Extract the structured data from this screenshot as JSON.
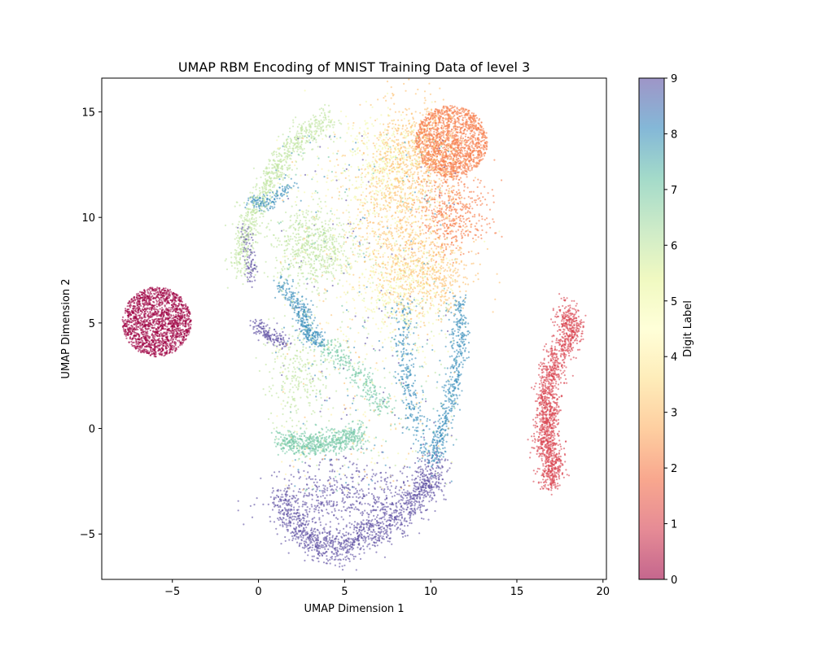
{
  "chart_data": {
    "type": "scatter",
    "title": "UMAP RBM Encoding of MNIST Training Data of level 3",
    "xlabel": "UMAP Dimension 1",
    "ylabel": "UMAP Dimension 2",
    "xlim": [
      -9.1,
      20.2
    ],
    "ylim": [
      -7.15,
      16.6
    ],
    "x_ticks": [
      -5,
      0,
      5,
      10,
      15,
      20
    ],
    "y_ticks": [
      -5,
      0,
      5,
      10,
      15
    ],
    "x_tick_labels": [
      "−5",
      "0",
      "5",
      "10",
      "15",
      "20"
    ],
    "y_tick_labels": [
      "−5",
      "0",
      "5",
      "10",
      "15"
    ],
    "grid": false,
    "colormap": "Spectral",
    "alpha": 0.6,
    "colorbar": {
      "label": "Digit Label",
      "range": [
        0,
        9
      ],
      "ticks": [
        "0",
        "1",
        "2",
        "3",
        "4",
        "5",
        "6",
        "7",
        "8",
        "9"
      ],
      "stops": [
        "#9e0142",
        "#d53e4f",
        "#f46d43",
        "#fdae61",
        "#fee08b",
        "#ffffbf",
        "#e6f598",
        "#abdda4",
        "#66c2a5",
        "#3288bd",
        "#5e4fa2"
      ]
    },
    "clusters": [
      {
        "label": 0,
        "x": [
          -7.7,
          -3.9
        ],
        "y": [
          3.3,
          6.8
        ],
        "shape": "blob",
        "note": "dense isolated cluster"
      },
      {
        "label": 1,
        "x": [
          15.9,
          18.7
        ],
        "y": [
          -2.8,
          5.8
        ],
        "shape": "elongated",
        "note": "dense isolated cluster"
      },
      {
        "label": 2,
        "x": [
          8.5,
          13.5
        ],
        "y": [
          8.0,
          15.5
        ],
        "shape": "blob"
      },
      {
        "label": 3,
        "x": [
          5.5,
          12.0
        ],
        "y": [
          5.0,
          15.3
        ],
        "shape": "diffuse"
      },
      {
        "label": 5,
        "x": [
          4.0,
          11.5
        ],
        "y": [
          3.0,
          14.8
        ],
        "shape": "diffuse"
      },
      {
        "label": 6,
        "x": [
          -1.4,
          6.0
        ],
        "y": [
          6.5,
          14.8
        ],
        "shape": "arc"
      },
      {
        "label": 7,
        "x": [
          1.0,
          6.0
        ],
        "y": [
          -1.5,
          3.0
        ],
        "shape": "band"
      },
      {
        "label": 8,
        "x": [
          5.5,
          12.3
        ],
        "y": [
          -2.5,
          6.5
        ],
        "shape": "strands"
      },
      {
        "label": 9,
        "x": [
          0.8,
          10.5
        ],
        "y": [
          -6.0,
          -1.5
        ],
        "shape": "bowl"
      }
    ]
  }
}
